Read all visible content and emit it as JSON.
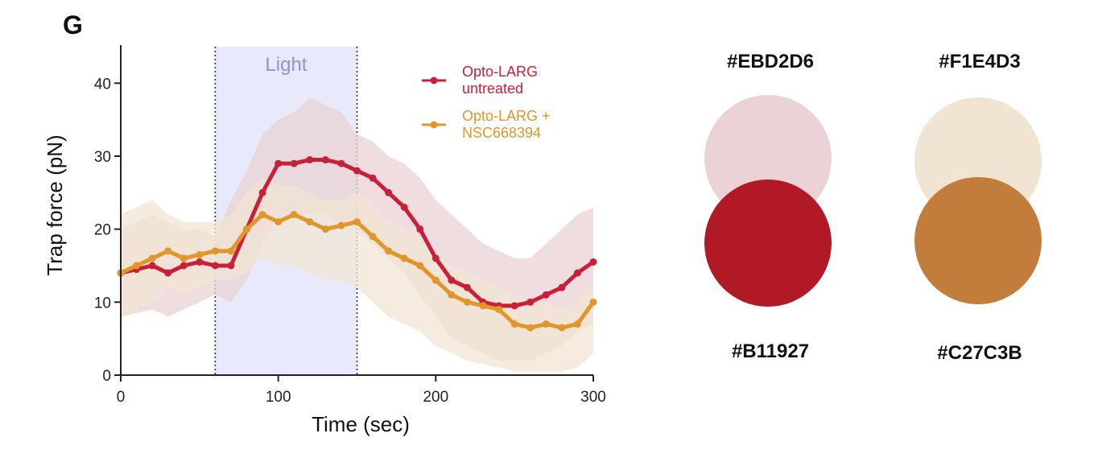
{
  "panel_letter": "G",
  "chart_data": {
    "type": "line",
    "xlabel": "Time (sec)",
    "ylabel": "Trap force (pN)",
    "xlim": [
      0,
      300
    ],
    "ylim": [
      0,
      45
    ],
    "xticks": [
      0,
      100,
      200,
      300
    ],
    "yticks": [
      0,
      10,
      20,
      30,
      40
    ],
    "grid": false,
    "legend_position": "top-right",
    "light_window": {
      "label": "Light",
      "start": 60,
      "end": 150,
      "color": "#e6e8fb",
      "label_color": "#8c93dd"
    },
    "x": [
      0,
      10,
      20,
      30,
      40,
      50,
      60,
      70,
      80,
      90,
      100,
      110,
      120,
      130,
      140,
      150,
      160,
      170,
      180,
      190,
      200,
      210,
      220,
      230,
      240,
      250,
      260,
      270,
      280,
      290,
      300
    ],
    "series": [
      {
        "name_lines": [
          "Opto-LARG",
          "untreated"
        ],
        "color": "#c9203a",
        "band_color": "#EBD2D6",
        "values": [
          14,
          14.5,
          15,
          14,
          15,
          15.5,
          15,
          15,
          20,
          25,
          29,
          29,
          29.5,
          29.5,
          29,
          28,
          27,
          25,
          23,
          20,
          16,
          13,
          12,
          10,
          9.5,
          9.5,
          10,
          11,
          12,
          14,
          15.5
        ],
        "upper": [
          20,
          21,
          22,
          21,
          20,
          20,
          19,
          24,
          28,
          33,
          35,
          36,
          38,
          37,
          36,
          33,
          32,
          30,
          29,
          27,
          24,
          22,
          20,
          18,
          17,
          16,
          16,
          18,
          20,
          22,
          23
        ],
        "lower": [
          8,
          8.5,
          9,
          8,
          9,
          10,
          11,
          10,
          13,
          18,
          22,
          22,
          22,
          22,
          21,
          20,
          18,
          16,
          14,
          11,
          8,
          5,
          4,
          3,
          2,
          2,
          2,
          3,
          4,
          6,
          7
        ]
      },
      {
        "name_lines": [
          "Opto-LARG +",
          "NSC668394"
        ],
        "color": "#e0962a",
        "band_color": "#F1E4D3",
        "values": [
          14,
          15,
          16,
          17,
          16,
          16.5,
          17,
          17,
          20,
          22,
          21,
          22,
          21,
          20,
          20.5,
          21,
          19,
          17,
          16,
          15,
          13,
          11,
          10,
          9.5,
          9,
          7,
          6.5,
          7,
          6.5,
          7,
          10
        ],
        "upper": [
          22,
          23,
          24,
          22,
          21,
          21,
          21,
          22,
          25,
          27,
          26,
          26,
          25,
          24,
          24,
          25,
          23,
          21,
          20,
          19,
          17,
          15,
          14,
          13,
          12,
          11,
          10,
          10,
          9,
          10,
          13
        ],
        "lower": [
          8,
          9,
          10,
          12,
          11,
          12,
          13,
          13,
          14,
          16,
          15,
          15,
          14,
          13,
          13,
          12,
          10,
          8,
          7,
          6,
          4,
          3,
          2,
          1.5,
          1,
          0.5,
          0.5,
          0.5,
          0.5,
          1,
          3
        ]
      }
    ]
  },
  "swatches": [
    {
      "hex": "#EBD2D6",
      "color": "#EBD2D6"
    },
    {
      "hex": "#F1E4D3",
      "color": "#F1E4D3"
    },
    {
      "hex": "#B11927",
      "color": "#B11927"
    },
    {
      "hex": "#C27C3B",
      "color": "#C27C3B"
    }
  ]
}
